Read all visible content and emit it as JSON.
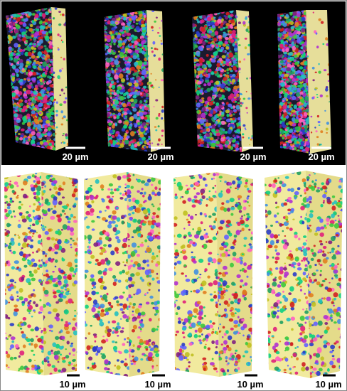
{
  "top_row": {
    "panels": [
      {
        "scale_label": "20 µm"
      },
      {
        "scale_label": "20 µm"
      },
      {
        "scale_label": "20 µm"
      },
      {
        "scale_label": "20 µm"
      }
    ]
  },
  "bottom_row": {
    "panels": [
      {
        "scale_label": "10 µm"
      },
      {
        "scale_label": "10 µm"
      },
      {
        "scale_label": "10 µm"
      },
      {
        "scale_label": "10 µm"
      }
    ]
  }
}
